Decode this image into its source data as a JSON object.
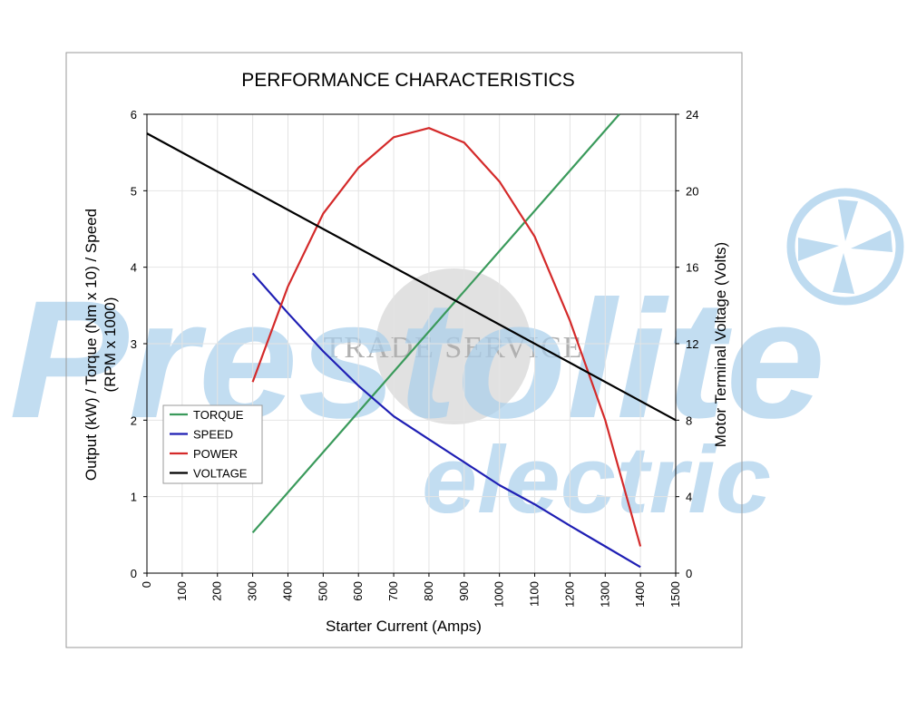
{
  "watermark": {
    "brand": "Prestolite",
    "sub": "electric",
    "stamp": "TRADE SERVICE",
    "color": "#a9cfec"
  },
  "chart_data": {
    "type": "line",
    "title": "PERFORMANCE CHARACTERISTICS",
    "xlabel": "Starter Current (Amps)",
    "ylabel_left_line1": "Output (kW) / Torque (Nm x 10) / Speed",
    "ylabel_left_line2": "(RPM x 1000)",
    "ylabel_right": "Motor Terminal Voltage (Volts)",
    "xlim": [
      0,
      1500
    ],
    "ylim_left": [
      0,
      6
    ],
    "ylim_right": [
      0,
      24
    ],
    "x_ticks": [
      "0",
      "100",
      "200",
      "300",
      "400",
      "500",
      "600",
      "700",
      "800",
      "900",
      "1000",
      "1100",
      "1200",
      "1300",
      "1400",
      "1500"
    ],
    "y_left_ticks": [
      "0",
      "1",
      "2",
      "3",
      "4",
      "5",
      "6"
    ],
    "y_right_ticks": [
      "0",
      "4",
      "8",
      "12",
      "16",
      "20",
      "24"
    ],
    "grid": true,
    "legend_position": "left",
    "series": [
      {
        "name": "TORQUE",
        "color": "#3a9a5b",
        "axis": "left",
        "x": [
          300,
          1340
        ],
        "y": [
          0.53,
          6.0
        ]
      },
      {
        "name": "SPEED",
        "color": "#1f1fb4",
        "axis": "left",
        "x": [
          300,
          400,
          500,
          600,
          700,
          800,
          900,
          1000,
          1100,
          1200,
          1300,
          1400
        ],
        "y": [
          3.92,
          3.4,
          2.9,
          2.45,
          2.05,
          1.75,
          1.45,
          1.15,
          0.9,
          0.62,
          0.35,
          0.08
        ]
      },
      {
        "name": "POWER",
        "color": "#d42a2a",
        "axis": "left",
        "x": [
          300,
          400,
          500,
          600,
          700,
          800,
          900,
          1000,
          1100,
          1200,
          1300,
          1400
        ],
        "y": [
          2.5,
          3.75,
          4.7,
          5.3,
          5.7,
          5.82,
          5.63,
          5.12,
          4.4,
          3.3,
          2.0,
          0.35
        ]
      },
      {
        "name": "VOLTAGE",
        "color": "#000000",
        "axis": "right",
        "x": [
          0,
          1500
        ],
        "y": [
          23.0,
          8.0
        ]
      }
    ]
  }
}
